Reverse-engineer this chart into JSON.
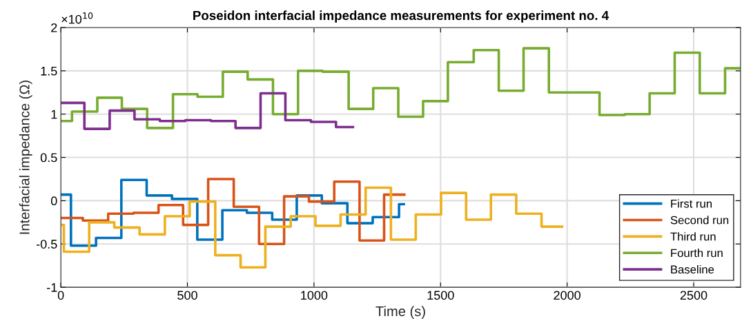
{
  "chart_data": {
    "type": "step",
    "title": "Poseidon interfacial impedance measurements for experiment no. 4",
    "xlabel": "Time (s)",
    "ylabel": "Interfacial impedance (Ω)",
    "annotations": [
      "×10$^{10}$"
    ],
    "xlim": [
      0,
      2685
    ],
    "xticks": [
      0,
      500,
      1000,
      1500,
      2000,
      2500
    ],
    "ylim": [
      -1,
      2
    ],
    "yticks": [
      -1,
      -0.5,
      0,
      0.5,
      1,
      1.5,
      2
    ],
    "grid": true,
    "legend": "bottom right",
    "line_style": "solid",
    "marker": "none",
    "series": [
      {
        "name": "First run",
        "color": "#0072bd",
        "x": [
          0,
          40,
          139,
          239,
          339,
          439,
          539,
          638,
          735,
          835,
          932,
          1031,
          1132,
          1232,
          1336,
          1355
        ],
        "values": [
          0.07,
          -0.52,
          -0.43,
          0.24,
          0.06,
          0.02,
          -0.45,
          -0.11,
          -0.14,
          -0.22,
          0.06,
          -0.03,
          -0.26,
          -0.19,
          -0.04,
          -0.04
        ]
      },
      {
        "name": "Second run",
        "color": "#d95319",
        "x": [
          0,
          87,
          187,
          287,
          386,
          483,
          582,
          683,
          783,
          882,
          980,
          1080,
          1180,
          1277,
          1357
        ],
        "values": [
          -0.2,
          -0.23,
          -0.15,
          -0.14,
          -0.05,
          -0.28,
          0.25,
          -0.07,
          -0.5,
          0.05,
          -0.01,
          0.22,
          -0.46,
          0.07,
          0.07
        ]
      },
      {
        "name": "Third run",
        "color": "#edb120",
        "x": [
          0,
          12,
          112,
          211,
          311,
          411,
          509,
          610,
          710,
          808,
          908,
          1006,
          1105,
          1204,
          1304,
          1402,
          1502,
          1601,
          1699,
          1799,
          1899,
          1980
        ],
        "values": [
          -0.28,
          -0.59,
          -0.25,
          -0.31,
          -0.39,
          -0.18,
          -0.01,
          -0.63,
          -0.77,
          -0.3,
          -0.18,
          -0.29,
          -0.16,
          0.15,
          -0.45,
          -0.16,
          0.09,
          -0.22,
          0.07,
          -0.15,
          -0.3,
          -0.3
        ]
      },
      {
        "name": "Fourth run",
        "color": "#77ac30",
        "x": [
          0,
          44,
          144,
          241,
          341,
          443,
          540,
          640,
          738,
          838,
          937,
          1034,
          1137,
          1234,
          1333,
          1431,
          1529,
          1631,
          1730,
          1828,
          1928,
          2029,
          2128,
          2228,
          2326,
          2425,
          2524,
          2624,
          2685
        ],
        "values": [
          0.92,
          1.03,
          1.19,
          1.06,
          0.84,
          1.23,
          1.2,
          1.49,
          1.4,
          1.0,
          1.5,
          1.49,
          1.06,
          1.3,
          0.97,
          1.15,
          1.6,
          1.74,
          1.27,
          1.76,
          1.25,
          1.25,
          0.99,
          1.0,
          1.24,
          1.71,
          1.24,
          1.53,
          1.53
        ]
      },
      {
        "name": "Baseline",
        "color": "#7e2f8e",
        "x": [
          0,
          93,
          193,
          291,
          391,
          492,
          593,
          690,
          789,
          887,
          988,
          1087,
          1154
        ],
        "values": [
          1.13,
          0.83,
          1.04,
          0.94,
          0.92,
          0.93,
          0.92,
          0.84,
          1.24,
          0.93,
          0.91,
          0.85,
          0.85
        ]
      }
    ]
  }
}
